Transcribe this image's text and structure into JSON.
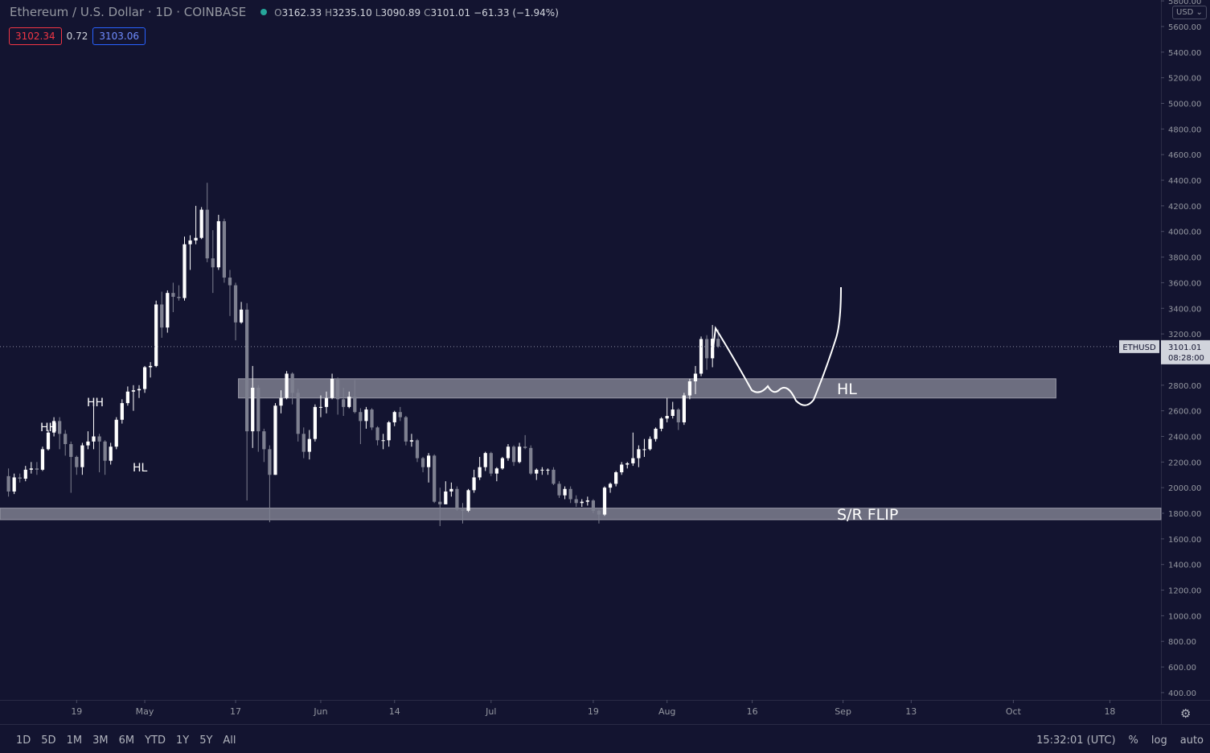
{
  "header": {
    "symbol": "Ethereum / U.S. Dollar · 1D · COINBASE",
    "ohlc": [
      {
        "key": "O",
        "value": "3162.33"
      },
      {
        "key": "H",
        "value": "3235.10"
      },
      {
        "key": "L",
        "value": "3090.89"
      },
      {
        "key": "C",
        "value": "3101.01"
      }
    ],
    "change": "−61.33 (−1.94%)",
    "bid": "3102.34",
    "spread": "0.72",
    "ask": "3103.06",
    "currency": "USD"
  },
  "chart_data": {
    "type": "candlestick",
    "x": [
      0,
      1,
      2,
      3,
      4,
      5,
      6,
      7,
      8,
      9,
      10,
      11,
      12,
      13,
      14,
      15,
      16,
      17,
      18,
      19,
      20,
      21,
      22,
      23,
      24,
      25,
      26,
      27,
      28,
      29,
      30,
      31,
      32,
      33,
      34,
      35,
      36,
      37,
      38,
      39,
      40,
      41,
      42,
      43,
      44,
      45,
      46,
      47,
      48,
      49,
      50,
      51,
      52,
      53,
      54,
      55,
      56,
      57,
      58,
      59,
      60,
      61,
      62,
      63,
      64,
      65,
      66,
      67,
      68,
      69,
      70,
      71,
      72,
      73,
      74,
      75,
      76,
      77,
      78,
      79,
      80,
      81,
      82,
      83,
      84,
      85,
      86,
      87,
      88,
      89,
      90,
      91,
      92,
      93,
      94,
      95,
      96,
      97,
      98,
      99,
      100,
      101,
      102,
      103,
      104,
      105,
      106,
      107,
      108,
      109,
      110,
      111,
      112,
      113,
      114,
      115,
      116,
      117,
      118,
      119,
      120,
      121,
      122,
      123,
      124,
      125
    ],
    "open": [
      2090,
      1970,
      2080,
      2070,
      2140,
      2150,
      2140,
      2300,
      2430,
      2520,
      2420,
      2340,
      2240,
      2160,
      2330,
      2360,
      2400,
      2360,
      2210,
      2320,
      2530,
      2660,
      2750,
      2760,
      2770,
      2940,
      2950,
      3430,
      3250,
      3520,
      3490,
      3480,
      3900,
      3930,
      3950,
      4170,
      3790,
      3720,
      4080,
      3640,
      3580,
      3290,
      3390,
      2440,
      2780,
      2440,
      2300,
      2100,
      2640,
      2700,
      2890,
      2740,
      2420,
      2280,
      2380,
      2630,
      2630,
      2700,
      2850,
      2690,
      2630,
      2710,
      2590,
      2520,
      2610,
      2470,
      2370,
      2370,
      2510,
      2590,
      2550,
      2360,
      2370,
      2230,
      2160,
      2250,
      1890,
      1870,
      1970,
      1990,
      1830,
      1820,
      1980,
      2080,
      2160,
      2270,
      2110,
      2150,
      2230,
      2320,
      2200,
      2320,
      2310,
      2110,
      2140,
      2140,
      2140,
      2030,
      1940,
      1990,
      1910,
      1880,
      1890,
      1900,
      1820,
      1790,
      2000,
      2030,
      2120,
      2180,
      2190,
      2230,
      2300,
      2300,
      2380,
      2460,
      2540,
      2560,
      2610,
      2510,
      2720,
      2830,
      2890,
      3160,
      3010,
      3162.33
    ],
    "high": [
      2150,
      2110,
      2110,
      2170,
      2200,
      2200,
      2320,
      2450,
      2550,
      2550,
      2450,
      2360,
      2250,
      2350,
      2440,
      2650,
      2420,
      2370,
      2350,
      2550,
      2690,
      2790,
      2800,
      2800,
      2950,
      2980,
      3460,
      3530,
      3540,
      3600,
      3580,
      3960,
      3970,
      4200,
      4190,
      4380,
      4010,
      4130,
      4100,
      3700,
      3600,
      3450,
      3440,
      2950,
      2800,
      2460,
      2330,
      2660,
      2760,
      2910,
      2900,
      2770,
      2470,
      2450,
      2650,
      2720,
      2750,
      2890,
      2860,
      2780,
      2750,
      2840,
      2620,
      2630,
      2620,
      2480,
      2420,
      2520,
      2600,
      2630,
      2560,
      2420,
      2380,
      2240,
      2270,
      2260,
      2000,
      2050,
      2040,
      2010,
      1880,
      1990,
      2140,
      2240,
      2280,
      2280,
      2160,
      2240,
      2340,
      2330,
      2350,
      2410,
      2330,
      2150,
      2160,
      2150,
      2160,
      2050,
      2010,
      2010,
      1940,
      1910,
      1930,
      1910,
      1830,
      2010,
      2040,
      2130,
      2200,
      2200,
      2430,
      2330,
      2380,
      2400,
      2470,
      2550,
      2700,
      2670,
      2620,
      2740,
      2850,
      2950,
      3180,
      3190,
      3270,
      3235.1
    ],
    "low": [
      1930,
      1950,
      2040,
      2050,
      2110,
      2100,
      2130,
      2290,
      2400,
      2300,
      2250,
      1960,
      2100,
      2100,
      2300,
      2300,
      2120,
      2100,
      2180,
      2300,
      2500,
      2640,
      2600,
      2700,
      2740,
      2860,
      2940,
      3170,
      3210,
      3370,
      3460,
      3460,
      3700,
      3900,
      3940,
      3760,
      3520,
      3700,
      3600,
      3340,
      3150,
      3280,
      1900,
      2310,
      2280,
      2200,
      1730,
      2100,
      2580,
      2690,
      2650,
      2360,
      2230,
      2220,
      2360,
      2550,
      2580,
      2690,
      2570,
      2560,
      2620,
      2580,
      2340,
      2460,
      2450,
      2330,
      2300,
      2320,
      2480,
      2520,
      2330,
      2320,
      2200,
      2120,
      2040,
      1880,
      1700,
      1870,
      1930,
      1820,
      1720,
      1810,
      1960,
      2060,
      2130,
      2090,
      2050,
      2140,
      2210,
      2170,
      2190,
      2300,
      2100,
      2060,
      2100,
      2100,
      2020,
      1920,
      1910,
      1880,
      1850,
      1850,
      1860,
      1800,
      1720,
      1780,
      1960,
      2010,
      2100,
      2150,
      2170,
      2160,
      2240,
      2290,
      2360,
      2440,
      2510,
      2540,
      2450,
      2490,
      2690,
      2730,
      2870,
      2920,
      2940,
      3090.89
    ],
    "close": [
      1970,
      2080,
      2070,
      2140,
      2150,
      2140,
      2300,
      2430,
      2520,
      2420,
      2340,
      2240,
      2160,
      2330,
      2360,
      2400,
      2360,
      2210,
      2320,
      2530,
      2660,
      2750,
      2760,
      2770,
      2940,
      2950,
      3430,
      3250,
      3520,
      3490,
      3480,
      3900,
      3930,
      3950,
      4170,
      3790,
      3720,
      4080,
      3640,
      3580,
      3290,
      3390,
      2440,
      2780,
      2440,
      2300,
      2100,
      2640,
      2700,
      2890,
      2740,
      2420,
      2280,
      2380,
      2630,
      2630,
      2700,
      2850,
      2690,
      2630,
      2710,
      2590,
      2520,
      2610,
      2470,
      2370,
      2370,
      2510,
      2590,
      2550,
      2360,
      2370,
      2230,
      2160,
      2250,
      1890,
      1870,
      1970,
      1990,
      1830,
      1820,
      1980,
      2080,
      2160,
      2270,
      2110,
      2150,
      2230,
      2320,
      2200,
      2320,
      2310,
      2110,
      2140,
      2140,
      2140,
      2030,
      1940,
      1990,
      1910,
      1880,
      1890,
      1900,
      1820,
      1790,
      2000,
      2030,
      2120,
      2180,
      2190,
      2230,
      2300,
      2300,
      2380,
      2460,
      2540,
      2560,
      2610,
      2510,
      2720,
      2830,
      2890,
      3160,
      3010,
      3162.33,
      3101.01
    ],
    "up_color": "#ffffff",
    "down_color": "#7e8090",
    "xlim": [
      -1.5,
      203
    ],
    "xticks": [
      {
        "value": 12,
        "label": "19"
      },
      {
        "value": 24,
        "label": "May"
      },
      {
        "value": 40,
        "label": "17"
      },
      {
        "value": 55,
        "label": "Jun"
      },
      {
        "value": 68,
        "label": "14"
      },
      {
        "value": 85,
        "label": "Jul"
      },
      {
        "value": 103,
        "label": "19"
      },
      {
        "value": 116,
        "label": "Aug"
      },
      {
        "value": 131,
        "label": "16"
      },
      {
        "value": 147,
        "label": "Sep"
      },
      {
        "value": 159,
        "label": "13"
      },
      {
        "value": 177,
        "label": "Oct"
      },
      {
        "value": 194,
        "label": "18"
      }
    ],
    "ylim": [
      343,
      5807
    ],
    "yticks": [
      {
        "value": 400,
        "label": "400.00"
      },
      {
        "value": 600,
        "label": "600.00"
      },
      {
        "value": 800,
        "label": "800.00"
      },
      {
        "value": 1000,
        "label": "1000.00"
      },
      {
        "value": 1200,
        "label": "1200.00"
      },
      {
        "value": 1400,
        "label": "1400.00"
      },
      {
        "value": 1600,
        "label": "1600.00"
      },
      {
        "value": 1800,
        "label": "1800.00"
      },
      {
        "value": 2000,
        "label": "2000.00"
      },
      {
        "value": 2200,
        "label": "2200.00"
      },
      {
        "value": 2400,
        "label": "2400.00"
      },
      {
        "value": 2600,
        "label": "2600.00"
      },
      {
        "value": 2800,
        "label": "2800.00"
      },
      {
        "value": 3000,
        "label": "3000.00"
      },
      {
        "value": 3200,
        "label": "3200.00"
      },
      {
        "value": 3400,
        "label": "3400.00"
      },
      {
        "value": 3600,
        "label": "3600.00"
      },
      {
        "value": 3800,
        "label": "3800.00"
      },
      {
        "value": 4000,
        "label": "4000.00"
      },
      {
        "value": 4200,
        "label": "4200.00"
      },
      {
        "value": 4400,
        "label": "4400.00"
      },
      {
        "value": 4600,
        "label": "4600.00"
      },
      {
        "value": 4800,
        "label": "4800.00"
      },
      {
        "value": 5000,
        "label": "5000.00"
      },
      {
        "value": 5200,
        "label": "5200.00"
      },
      {
        "value": 5400,
        "label": "5400.00"
      },
      {
        "value": 5600,
        "label": "5600.00"
      },
      {
        "value": 5800,
        "label": "5800.00"
      }
    ],
    "last_price": {
      "symbol": "ETHUSD",
      "value": 3101.01,
      "label": "3101.01",
      "countdown": "08:28:00"
    },
    "zones": [
      {
        "label": "HL",
        "from": 2700,
        "to": 2850,
        "x_from": 40.5,
        "x_to": 184.5
      },
      {
        "label": "S/R FLIP",
        "from": 1750,
        "to": 1840,
        "x_from": -1.5,
        "x_to": 203
      }
    ],
    "annotations": [
      "HH",
      "HH",
      "HL"
    ]
  },
  "toolbar": {
    "ranges": [
      "1D",
      "5D",
      "1M",
      "3M",
      "6M",
      "YTD",
      "1Y",
      "5Y",
      "All"
    ],
    "time": "15:32:01 (UTC)",
    "options": [
      "%",
      "log",
      "auto"
    ]
  }
}
